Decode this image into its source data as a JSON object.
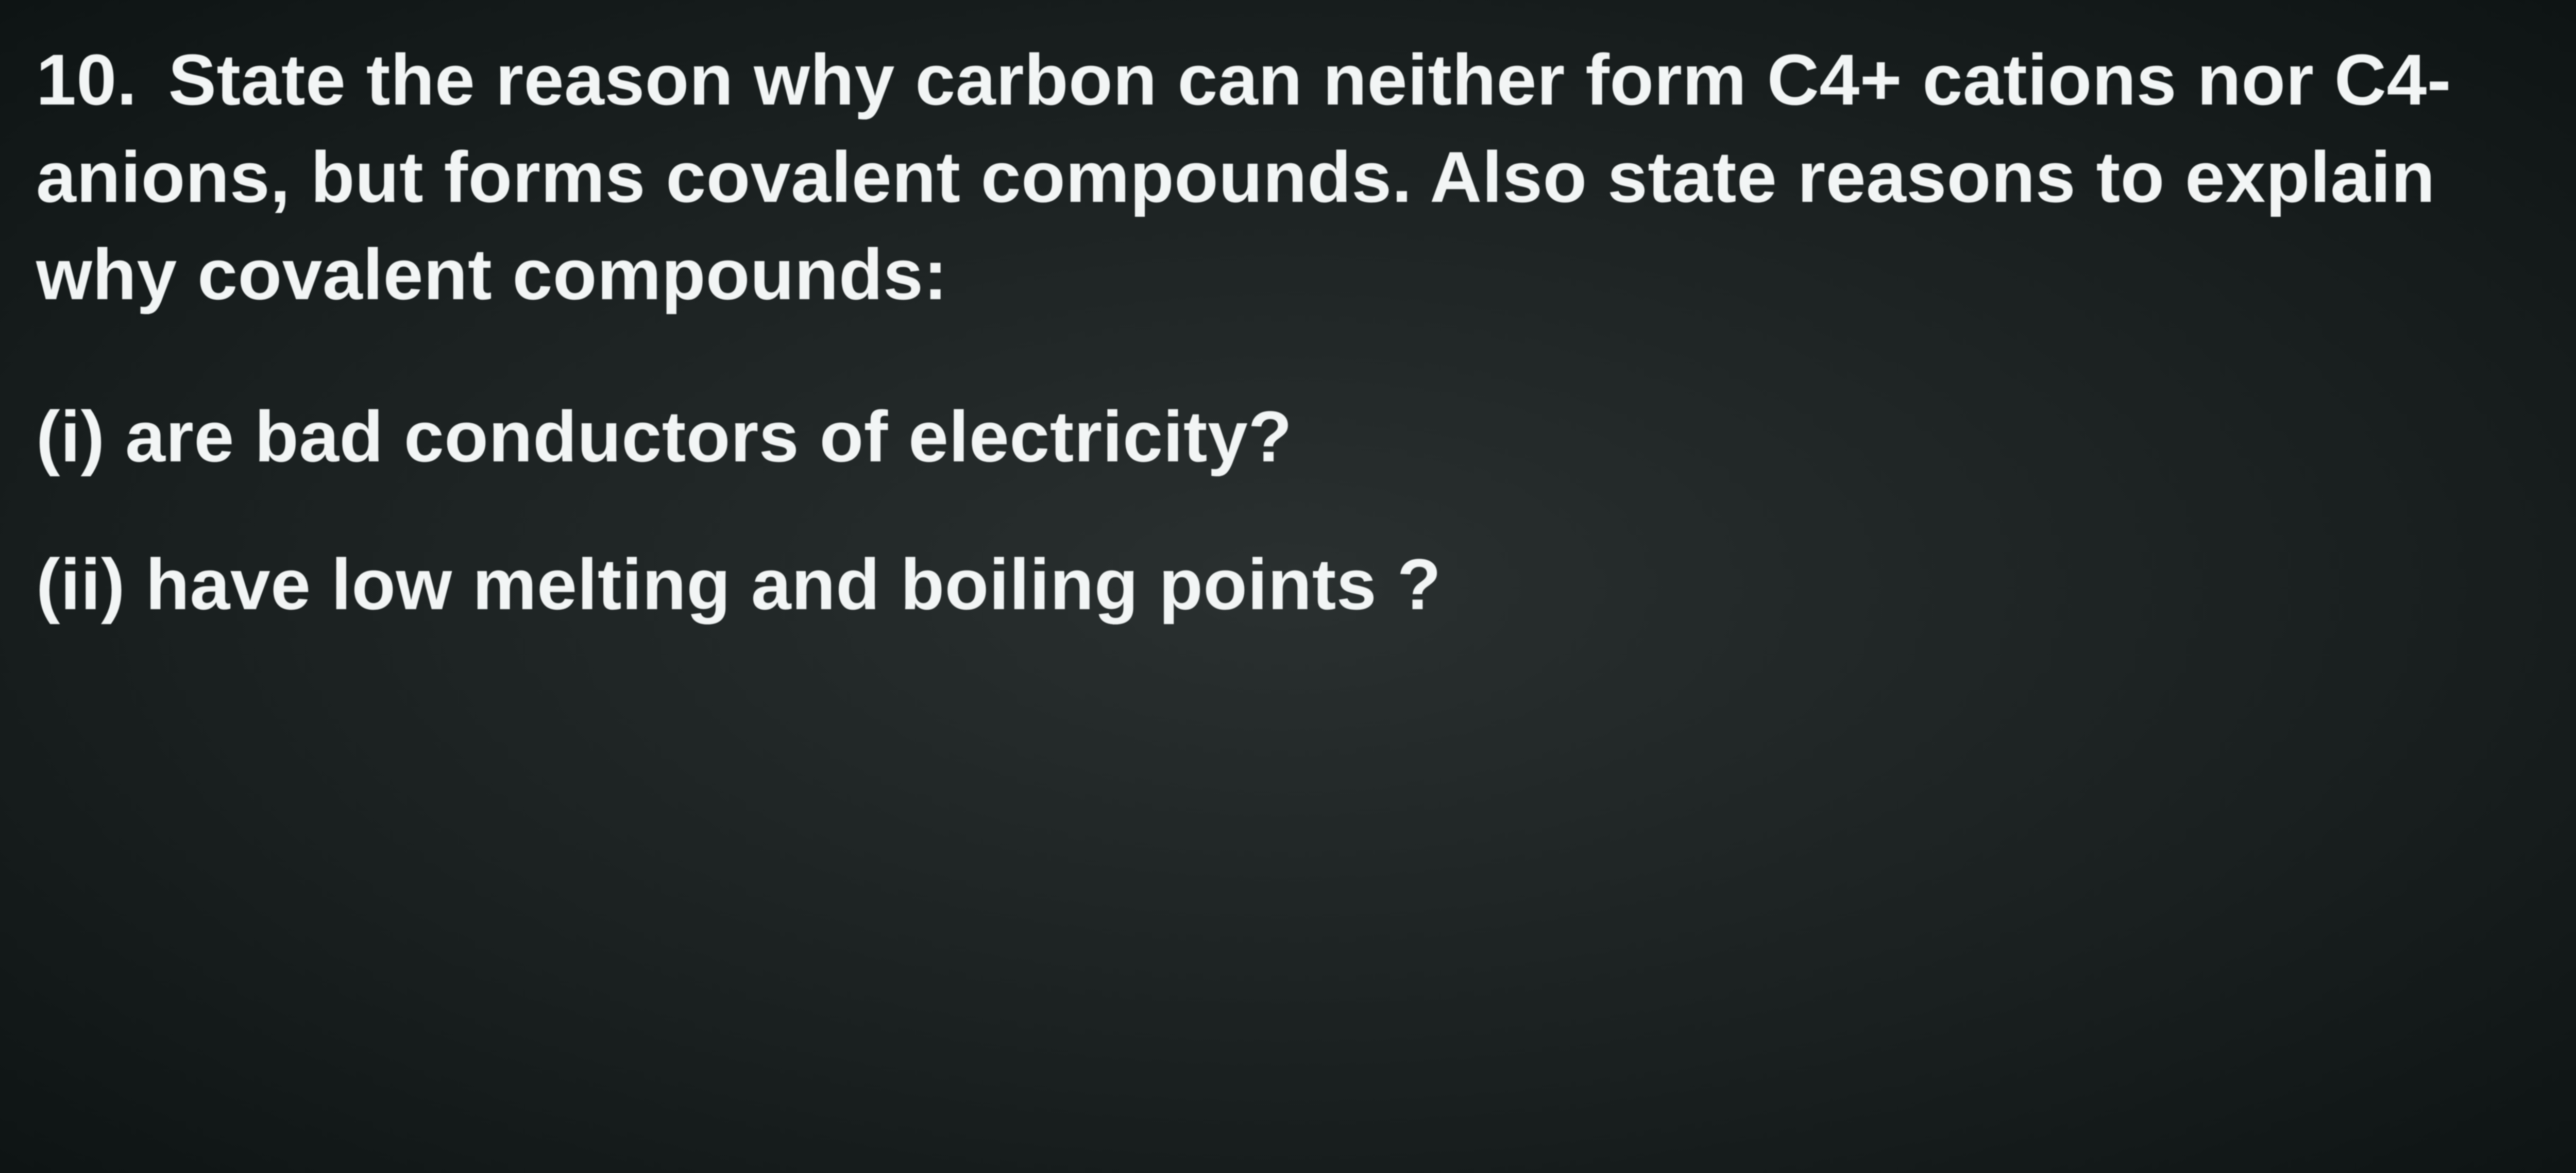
{
  "text_color": "#f2f5f5",
  "background": {
    "center": "#2a3030",
    "mid": "#1a2020",
    "edge": "#0e1414"
  },
  "font": {
    "family": "Segoe UI, Helvetica Neue, Arial, sans-serif",
    "size_pt": 140,
    "weight": 600,
    "line_height": 1.35
  },
  "question": {
    "number": "10.",
    "main": "State the reason why carbon can neither form C4+ cations nor C4- anions, but forms covalent compounds. Also state reasons to explain why covalent compounds:",
    "subparts": [
      {
        "label": "(i)",
        "text": "are bad conductors of electricity?"
      },
      {
        "label": "(ii)",
        "text": "have low melting and boiling points ?"
      }
    ]
  }
}
